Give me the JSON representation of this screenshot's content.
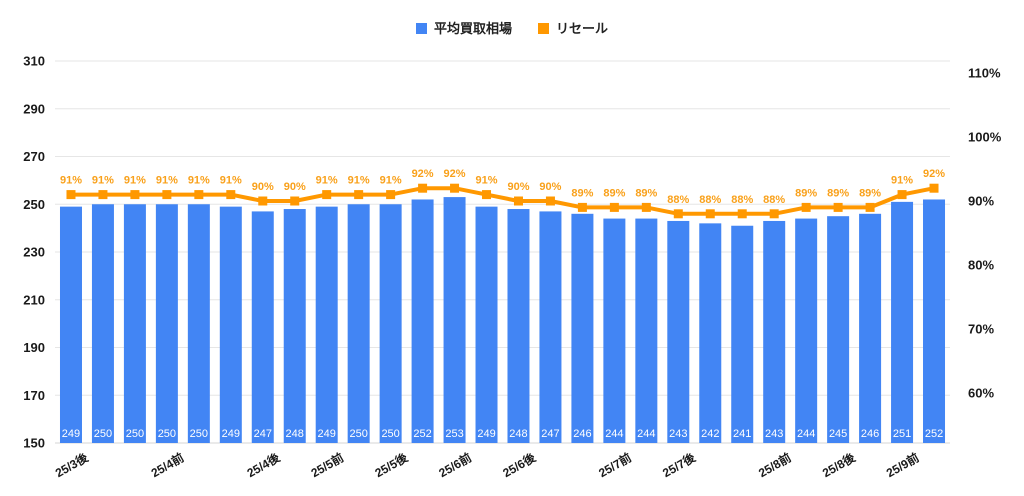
{
  "chart_data": {
    "type": "combo-bar-line",
    "title": "",
    "background": "#ffffff",
    "grid": true,
    "legend_position": "top-center",
    "categories_count": 28,
    "x_tick_labels": [
      {
        "index": 0,
        "label": "25/3後"
      },
      {
        "index": 3,
        "label": "25/4前"
      },
      {
        "index": 6,
        "label": "25/4後"
      },
      {
        "index": 8,
        "label": "25/5前"
      },
      {
        "index": 10,
        "label": "25/5後"
      },
      {
        "index": 12,
        "label": "25/6前"
      },
      {
        "index": 14,
        "label": "25/6後"
      },
      {
        "index": 17,
        "label": "25/7前"
      },
      {
        "index": 19,
        "label": "25/7後"
      },
      {
        "index": 22,
        "label": "25/8前"
      },
      {
        "index": 24,
        "label": "25/8後"
      },
      {
        "index": 26,
        "label": "25/9前"
      }
    ],
    "series": [
      {
        "name": "平均買取相場",
        "type": "bar",
        "axis": "left",
        "color": "#4285F4",
        "value_label_color": "#ffffff",
        "values": [
          249,
          250,
          250,
          250,
          250,
          249,
          247,
          248,
          249,
          250,
          250,
          252,
          253,
          249,
          248,
          247,
          246,
          244,
          244,
          243,
          242,
          241,
          243,
          244,
          245,
          246,
          251,
          252
        ]
      },
      {
        "name": "リセール",
        "type": "line",
        "axis": "right",
        "color": "#FF9800",
        "value_label_color": "#F9A11B",
        "unit": "%",
        "values": [
          91,
          91,
          91,
          91,
          91,
          91,
          90,
          90,
          91,
          91,
          91,
          92,
          92,
          91,
          90,
          90,
          89,
          89,
          89,
          88,
          88,
          88,
          88,
          89,
          89,
          89,
          91,
          92
        ]
      }
    ],
    "left_axis": {
      "min": 150,
      "max": 310,
      "ticks": [
        150,
        170,
        190,
        210,
        230,
        250,
        270,
        290,
        310
      ]
    },
    "right_axis": {
      "ticks": [
        60,
        70,
        80,
        90,
        100,
        110
      ],
      "tick_labels": [
        "60%",
        "70%",
        "80%",
        "90%",
        "100%",
        "110%"
      ]
    },
    "colors": {
      "grid_line": "#e6e6e6",
      "baseline": "#d6d6d6",
      "axis_text": "#1a1a1a"
    }
  }
}
